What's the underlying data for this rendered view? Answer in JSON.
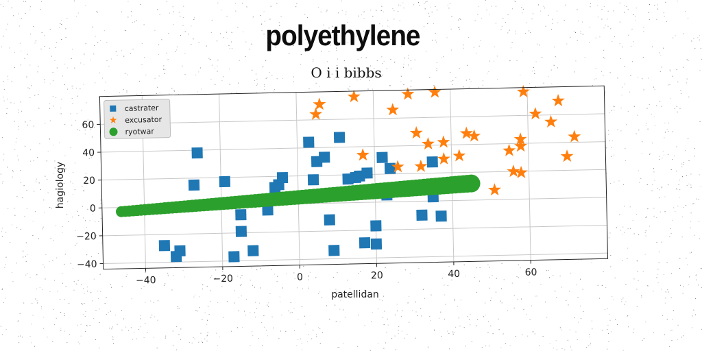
{
  "header": {
    "title": "polyethylene"
  },
  "chart_data": {
    "type": "scatter",
    "title": "O i i bibbs",
    "xlabel": "patellidan",
    "ylabel": "hagiology",
    "xlim": [
      -51,
      80
    ],
    "ylim": [
      -44,
      80
    ],
    "xticks": [
      -40,
      -20,
      0,
      20,
      40,
      60
    ],
    "yticks": [
      -40,
      -20,
      0,
      20,
      40,
      60
    ],
    "xtick_labels": [
      "−40",
      "−20",
      "0",
      "20",
      "40",
      "60"
    ],
    "ytick_labels": [
      "−40",
      "−20",
      "0",
      "20",
      "40",
      "60"
    ],
    "grid": true,
    "legend_position": "top-left",
    "series": [
      {
        "name": "castrater",
        "marker": "square",
        "color": "#1f77b4",
        "points": [
          [
            -26,
            38
          ],
          [
            -27,
            15
          ],
          [
            -19,
            17
          ],
          [
            -15,
            -7
          ],
          [
            -15,
            -19
          ],
          [
            -17,
            -37
          ],
          [
            -12,
            -33
          ],
          [
            -8,
            -4
          ],
          [
            -6,
            12
          ],
          [
            -5,
            14
          ],
          [
            -4,
            19
          ],
          [
            -35,
            -28
          ],
          [
            -32,
            -36
          ],
          [
            -31,
            -32
          ],
          [
            3,
            44
          ],
          [
            4,
            17
          ],
          [
            5,
            30
          ],
          [
            7,
            33
          ],
          [
            8,
            -12
          ],
          [
            9,
            -34
          ],
          [
            11,
            47
          ],
          [
            13,
            17
          ],
          [
            15,
            18
          ],
          [
            16,
            19
          ],
          [
            17,
            -29
          ],
          [
            18,
            21
          ],
          [
            20,
            -17
          ],
          [
            20,
            -30
          ],
          [
            22,
            32
          ],
          [
            23,
            5
          ],
          [
            24,
            24
          ],
          [
            32,
            -10
          ],
          [
            35,
            3
          ],
          [
            35,
            28
          ],
          [
            37,
            -11
          ]
        ]
      },
      {
        "name": "excusator",
        "marker": "star",
        "color": "#ff7f0e",
        "points": [
          [
            5,
            64
          ],
          [
            6,
            71
          ],
          [
            15,
            76
          ],
          [
            17,
            34
          ],
          [
            25,
            66
          ],
          [
            26,
            25
          ],
          [
            29,
            77
          ],
          [
            31,
            49
          ],
          [
            32,
            25
          ],
          [
            34,
            41
          ],
          [
            36,
            78
          ],
          [
            38,
            42
          ],
          [
            38,
            30
          ],
          [
            42,
            32
          ],
          [
            44,
            48
          ],
          [
            46,
            46
          ],
          [
            51,
            7
          ],
          [
            55,
            35
          ],
          [
            56,
            20
          ],
          [
            58,
            19
          ],
          [
            58,
            38
          ],
          [
            58,
            43
          ],
          [
            59,
            77
          ],
          [
            62,
            61
          ],
          [
            66,
            55
          ],
          [
            68,
            70
          ],
          [
            70,
            30
          ],
          [
            72,
            44
          ]
        ]
      },
      {
        "name": "ryotwar",
        "marker": "circle",
        "color": "#2ca02c",
        "line": {
          "x_start": -46,
          "y_start": -3,
          "x_end": 45,
          "y_end": 12,
          "count": 90
        }
      }
    ]
  }
}
